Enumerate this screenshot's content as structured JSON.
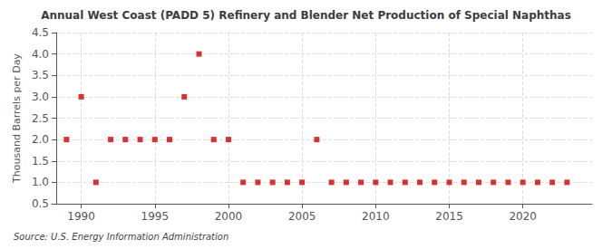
{
  "chart_data": {
    "type": "scatter",
    "title": "Annual West Coast (PADD 5) Refinery and Blender Net Production of Special Naphthas",
    "ylabel": "Thousand Barrels per Day",
    "annotations": [
      "Source: U.S. Energy Information Administration"
    ],
    "x": [
      1989,
      1990,
      1991,
      1992,
      1993,
      1994,
      1995,
      1996,
      1997,
      1998,
      1999,
      2000,
      2001,
      2002,
      2003,
      2004,
      2005,
      2006,
      2007,
      2008,
      2009,
      2010,
      2011,
      2012,
      2013,
      2014,
      2015,
      2016,
      2017,
      2018,
      2019,
      2020,
      2021,
      2022,
      2023
    ],
    "values": [
      2,
      3,
      1,
      2,
      2,
      2,
      2,
      2,
      3,
      4,
      2,
      2,
      1,
      1,
      1,
      1,
      1,
      2,
      1,
      1,
      1,
      1,
      1,
      1,
      1,
      1,
      1,
      1,
      1,
      1,
      1,
      1,
      1,
      1,
      1
    ],
    "color": "#cc0000",
    "marker": "square",
    "xlim": [
      1988.3,
      2024.7
    ],
    "xticks": [
      1990,
      1995,
      2000,
      2005,
      2010,
      2015,
      2020
    ],
    "ylim": [
      0.5,
      4.5
    ],
    "yticks": [
      0.5,
      {
        "value": 1.0,
        "label": "1.0"
      },
      1.5,
      {
        "value": 2.0,
        "label": "2.0"
      },
      2.5,
      {
        "value": 3.0,
        "label": "3.0"
      },
      3.5,
      {
        "value": 4.0,
        "label": "4.0"
      },
      4.5
    ],
    "grid": true
  }
}
